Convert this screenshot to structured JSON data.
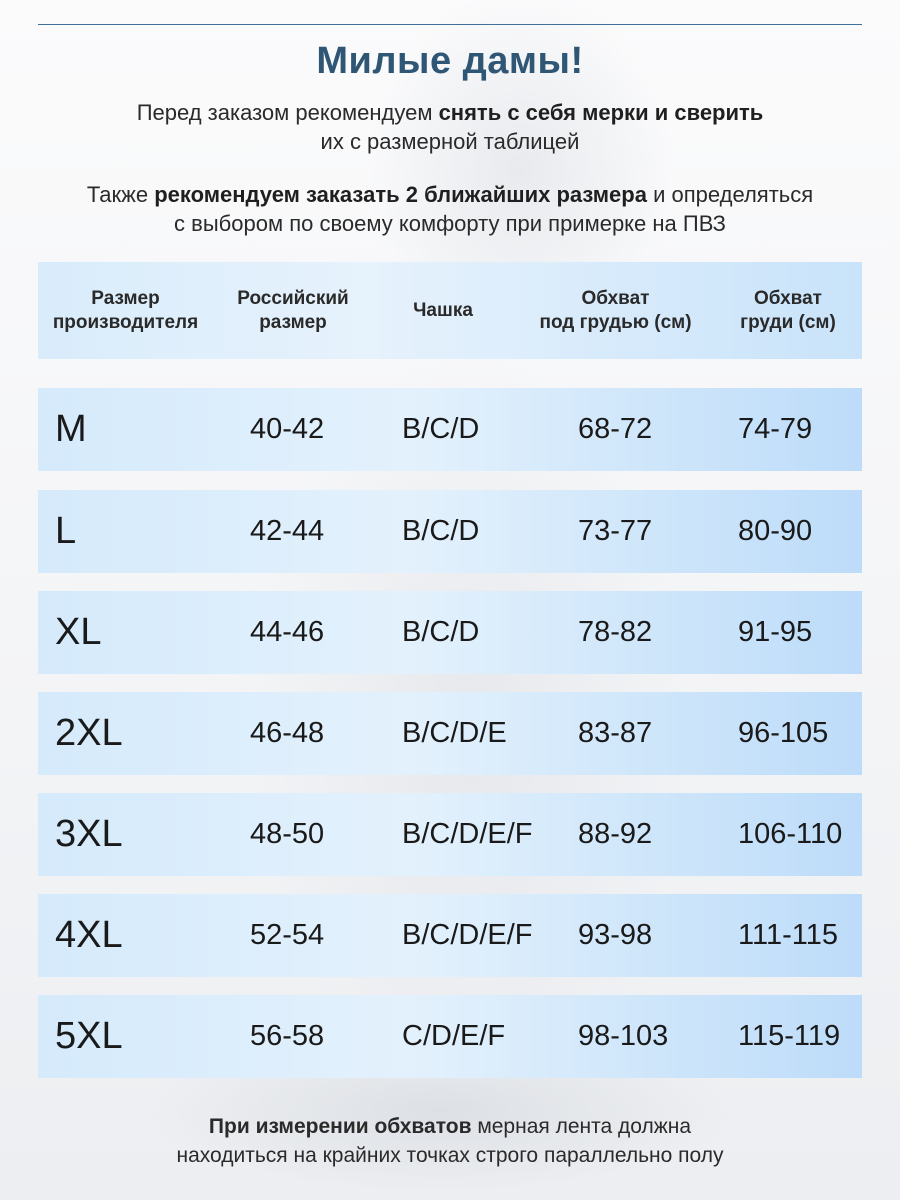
{
  "title": "Милые дамы!",
  "intro1": {
    "a": "Перед заказом рекомендуем ",
    "b": "снять с себя мерки и сверить",
    "c": "их с размерной таблицей"
  },
  "intro2": {
    "a": "Также ",
    "b": "рекомендуем заказать 2 ближайших размера",
    "c": " и определяться",
    "d": "с выбором по своему комфорту при примерке на ПВЗ"
  },
  "table": {
    "headers": [
      [
        "Размер",
        "производителя"
      ],
      [
        "Российский",
        "размер"
      ],
      [
        "Чашка",
        ""
      ],
      [
        "Обхват",
        "под грудью (см)"
      ],
      [
        "Обхват",
        "груди (см)"
      ]
    ],
    "rows": [
      [
        "M",
        "40-42",
        "B/C/D",
        "68-72",
        "74-79"
      ],
      [
        "L",
        "42-44",
        "B/C/D",
        "73-77",
        "80-90"
      ],
      [
        "XL",
        "44-46",
        "B/C/D",
        "78-82",
        "91-95"
      ],
      [
        "2XL",
        "46-48",
        "B/C/D/E",
        "83-87",
        "96-105"
      ],
      [
        "3XL",
        "48-50",
        "B/C/D/E/F",
        "88-92",
        "106-110"
      ],
      [
        "4XL",
        "52-54",
        "B/C/D/E/F",
        "93-98",
        "111-115"
      ],
      [
        "5XL",
        "56-58",
        "C/D/E/F",
        "98-103",
        "115-119"
      ]
    ]
  },
  "footer": {
    "a": "При измерении обхватов",
    "b": " мерная лента должна",
    "c": "находиться на крайних точках строго параллельно полу"
  }
}
